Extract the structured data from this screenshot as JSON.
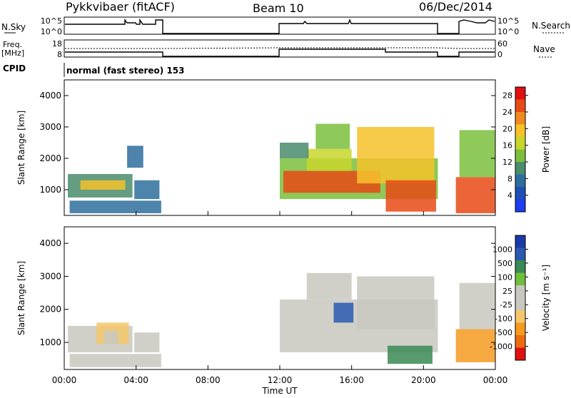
{
  "header": {
    "station": "Pykkvibaer (fitACF)",
    "beam": "Beam 10",
    "date": "06/Dec/2014"
  },
  "aux_panels": {
    "nsky_label": "N.Sky",
    "nsearch_label": "N.Search",
    "nsky_ticks": [
      "10^5",
      "10^0"
    ],
    "nsearch_ticks": [
      "10^5",
      "10^0"
    ],
    "freq_label_1": "Freq.",
    "freq_label_2": "[MHz]",
    "freq_ticks": [
      "18",
      "8"
    ],
    "nave_label": "Nave",
    "nave_ticks": [
      "60",
      "0"
    ],
    "cpid_label": "CPID",
    "cpid_value": "normal (fast stereo) 153"
  },
  "colors": {
    "power_scale": [
      "#1e3cf0",
      "#1f4fb4",
      "#2e6e9c",
      "#4a8c6c",
      "#7bbf3c",
      "#c8d62c",
      "#f5c22a",
      "#f08a1e",
      "#e84a16",
      "#e01010"
    ],
    "velocity_scale": [
      "#e01010",
      "#f06a10",
      "#f59a1e",
      "#f5c76a",
      "#c8c8c0",
      "#c8c8c0",
      "#6fbf3c",
      "#3a8a54",
      "#2a5ab0",
      "#1b3aa8"
    ]
  },
  "chart_data": [
    {
      "type": "heatmap",
      "title": "",
      "xlabel": "Time UT",
      "ylabel": "Slant Range [km]",
      "xlim": [
        0,
        24
      ],
      "ylim": [
        180,
        4500
      ],
      "x_ticks": [
        "00:00",
        "04:00",
        "08:00",
        "12:00",
        "16:00",
        "20:00",
        "00:00"
      ],
      "y_ticks": [
        "1000",
        "2000",
        "3000",
        "4000"
      ],
      "y_tick_values": [
        1000,
        2000,
        3000,
        4000
      ],
      "colorbar_label": "Power [dB]",
      "colorbar_ticks": [
        "4",
        "8",
        "12",
        "16",
        "20",
        "24",
        "28"
      ],
      "colorbar_range": [
        0,
        30
      ],
      "cells": [
        {
          "t0": 0.2,
          "t1": 3.8,
          "r0": 750,
          "r1": 1500,
          "v": 10
        },
        {
          "t0": 0.9,
          "t1": 3.4,
          "r0": 1000,
          "r1": 1300,
          "v": 18
        },
        {
          "t0": 0.3,
          "t1": 5.4,
          "r0": 250,
          "r1": 650,
          "v": 6
        },
        {
          "t0": 3.9,
          "t1": 5.3,
          "r0": 700,
          "r1": 1300,
          "v": 8
        },
        {
          "t0": 3.5,
          "t1": 4.4,
          "r0": 1700,
          "r1": 2400,
          "v": 6
        },
        {
          "t0": 12.0,
          "t1": 20.8,
          "r0": 700,
          "r1": 2000,
          "v": 14
        },
        {
          "t0": 12.2,
          "t1": 17.6,
          "r0": 900,
          "r1": 1600,
          "v": 26
        },
        {
          "t0": 13.5,
          "t1": 16.0,
          "r0": 1600,
          "r1": 2300,
          "v": 16
        },
        {
          "t0": 14.0,
          "t1": 15.9,
          "r0": 2300,
          "r1": 3100,
          "v": 14
        },
        {
          "t0": 16.3,
          "t1": 20.6,
          "r0": 1200,
          "r1": 3000,
          "v": 18
        },
        {
          "t0": 17.9,
          "t1": 20.7,
          "r0": 300,
          "r1": 1300,
          "v": 24
        },
        {
          "t0": 12.0,
          "t1": 13.6,
          "r0": 2000,
          "r1": 2500,
          "v": 10
        },
        {
          "t0": 21.8,
          "t1": 24.0,
          "r0": 250,
          "r1": 1400,
          "v": 24
        },
        {
          "t0": 22.0,
          "t1": 24.0,
          "r0": 1400,
          "r1": 2900,
          "v": 12
        }
      ]
    },
    {
      "type": "heatmap",
      "title": "",
      "xlabel": "Time UT",
      "ylabel": "Slant Range [km]",
      "xlim": [
        0,
        24
      ],
      "ylim": [
        180,
        4500
      ],
      "x_ticks": [
        "00:00",
        "04:00",
        "08:00",
        "12:00",
        "16:00",
        "20:00",
        "00:00"
      ],
      "y_ticks": [
        "1000",
        "2000",
        "3000",
        "4000"
      ],
      "y_tick_values": [
        1000,
        2000,
        3000,
        4000
      ],
      "colorbar_label": "Velocity [m s⁻¹]",
      "colorbar_ticks": [
        "1000",
        "500",
        "100",
        "25",
        "-25",
        "-100",
        "-500",
        "-1000"
      ],
      "colorbar_range": [
        -1200,
        1200
      ],
      "cells": [
        {
          "t0": 0.2,
          "t1": 3.8,
          "r0": 700,
          "r1": 1500,
          "v": -200
        },
        {
          "t0": 1.8,
          "t1": 3.6,
          "r0": 950,
          "r1": 1600,
          "v": -300
        },
        {
          "t0": 2.2,
          "t1": 3.0,
          "r0": 950,
          "r1": 1350,
          "v": 150
        },
        {
          "t0": 0.3,
          "t1": 5.4,
          "r0": 250,
          "r1": 650,
          "v": 0
        },
        {
          "t0": 3.9,
          "t1": 5.3,
          "r0": 700,
          "r1": 1300,
          "v": -60
        },
        {
          "t0": 12.0,
          "t1": 20.8,
          "r0": 700,
          "r1": 2300,
          "v": 0
        },
        {
          "t0": 13.5,
          "t1": 16.0,
          "r0": 2300,
          "r1": 3100,
          "v": 0
        },
        {
          "t0": 16.3,
          "t1": 20.6,
          "r0": 1400,
          "r1": 3000,
          "v": 0
        },
        {
          "t0": 15.0,
          "t1": 16.1,
          "r0": 1600,
          "r1": 2200,
          "v": 800
        },
        {
          "t0": 18.0,
          "t1": 20.5,
          "r0": 350,
          "r1": 900,
          "v": 700
        },
        {
          "t0": 21.8,
          "t1": 24.0,
          "r0": 400,
          "r1": 1400,
          "v": -500
        },
        {
          "t0": 22.0,
          "t1": 24.0,
          "r0": 1400,
          "r1": 2800,
          "v": 0
        }
      ]
    }
  ]
}
